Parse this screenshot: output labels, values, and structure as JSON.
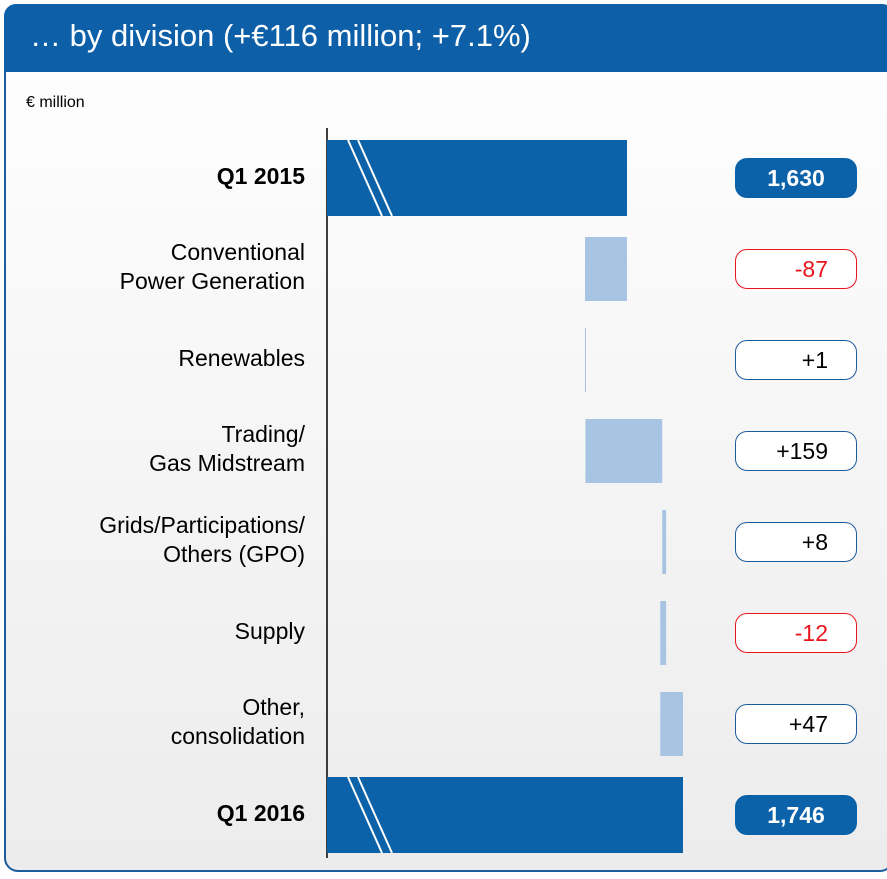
{
  "chart_data": {
    "type": "waterfall",
    "title": "… by division (+€116 million; +7.1%)",
    "unit_label": "€ million",
    "categories": [
      "Q1 2015",
      "Conventional\nPower Generation",
      "Renewables",
      "Trading/\nGas Midstream",
      "Grids/Participations/\nOthers (GPO)",
      "Supply",
      "Other,\nconsolidation",
      "Q1 2016"
    ],
    "values": [
      1630,
      -87,
      1,
      159,
      8,
      -12,
      47,
      1746
    ],
    "value_labels": [
      "1,630",
      "-87",
      "+1",
      "+159",
      "+8",
      "-12",
      "+47",
      "1,746"
    ],
    "is_total": [
      true,
      false,
      false,
      false,
      false,
      false,
      false,
      true
    ],
    "total_color": "#0b62a8",
    "delta_color": "#a7c4e3",
    "negative_color": "#e8141c",
    "positive_color": "#1d5c9c"
  }
}
